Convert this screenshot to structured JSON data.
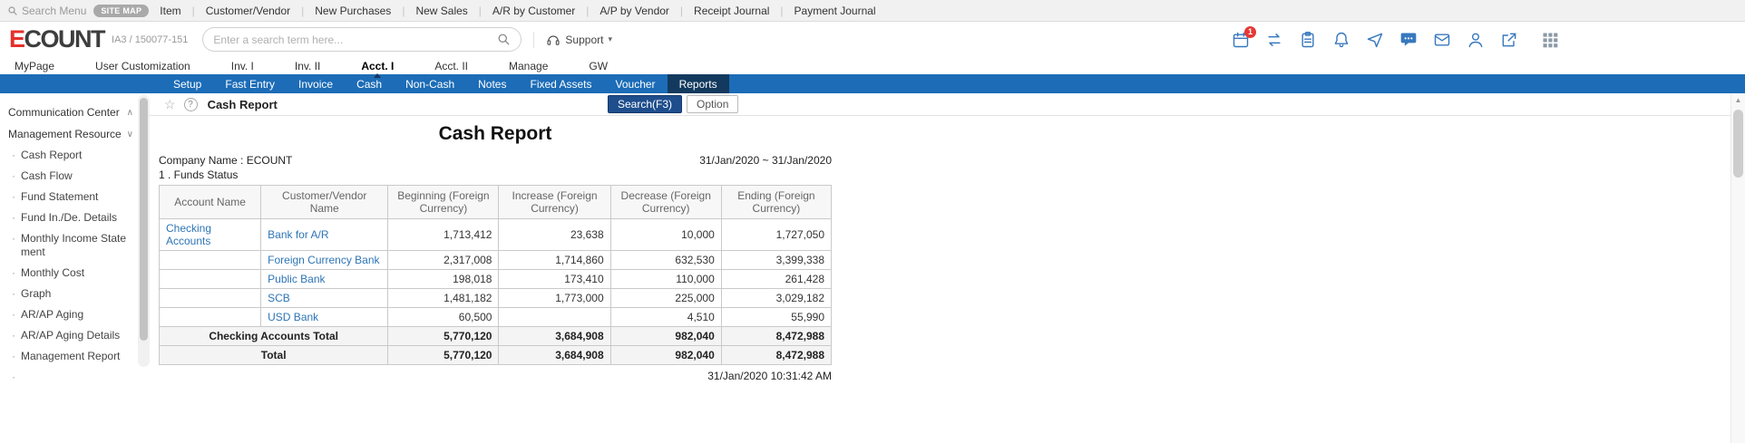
{
  "colors": {
    "blue_bar": "#1c6cb7",
    "blue_bar_active": "#133a5e",
    "link_blue": "#2e75b6",
    "button_blue": "#1f4e8d",
    "logo_red": "#e5312b",
    "icon_blue": "#3778be",
    "badge_red": "#e53935"
  },
  "icons": {
    "star": "☆",
    "help": "?",
    "support_arrow": "▾",
    "chevron_up": "∧",
    "chevron_down": "∨",
    "bullet": "·",
    "scroll_up_arrow": "▲",
    "menu_separator": "|"
  },
  "topbar": {
    "search_menu_label": "Search Menu",
    "site_map_label": "SITE MAP",
    "items": [
      "Item",
      "Customer/Vendor",
      "New Purchases",
      "New Sales",
      "A/R by Customer",
      "A/P by Vendor",
      "Receipt Journal",
      "Payment Journal"
    ]
  },
  "header": {
    "logo_text_red": "E",
    "logo_text_dark": "COUNT",
    "company_code": "IA3 / 150077-151",
    "search_placeholder": "Enter a search term here...",
    "support_label": "Support",
    "notification_badge": "1"
  },
  "main_nav": {
    "tabs": [
      {
        "label": "MyPage",
        "active": false
      },
      {
        "label": "User Customization",
        "active": false
      },
      {
        "label": "Inv. I",
        "active": false
      },
      {
        "label": "Inv. II",
        "active": false
      },
      {
        "label": "Acct. I",
        "active": true
      },
      {
        "label": "Acct. II",
        "active": false
      },
      {
        "label": "Manage",
        "active": false
      },
      {
        "label": "GW",
        "active": false
      }
    ]
  },
  "sub_nav": {
    "items": [
      {
        "label": "Setup",
        "active": false
      },
      {
        "label": "Fast Entry",
        "active": false
      },
      {
        "label": "Invoice",
        "active": false
      },
      {
        "label": "Cash",
        "active": false
      },
      {
        "label": "Non-Cash",
        "active": false
      },
      {
        "label": "Notes",
        "active": false
      },
      {
        "label": "Fixed Assets",
        "active": false
      },
      {
        "label": "Voucher",
        "active": false
      },
      {
        "label": "Reports",
        "active": true
      }
    ]
  },
  "toolbar": {
    "page_title": "Cash Report",
    "search_button_label": "Search(F3)",
    "option_button_label": "Option"
  },
  "sidebar": {
    "sections": [
      {
        "label": "Communication Center",
        "chevron": "up"
      },
      {
        "label": "Management Resource",
        "chevron": "down"
      }
    ],
    "items": [
      "Cash Report",
      "Cash Flow",
      "Fund Statement",
      "Fund In./De. Details",
      "Monthly Income Statement",
      "Monthly Cost",
      "Graph",
      "AR/AP Aging",
      "AR/AP Aging Details",
      "Management Report"
    ]
  },
  "report": {
    "title": "Cash Report",
    "company_label": "Company Name : ECOUNT",
    "date_range": "31/Jan/2020 ~ 31/Jan/2020",
    "section_label": "1 . Funds Status",
    "generated_at": "31/Jan/2020 10:31:42 AM"
  },
  "chart_data": {
    "type": "table",
    "columns": [
      "Account Name",
      "Customer/Vendor Name",
      "Beginning (Foreign Currency)",
      "Increase (Foreign Currency)",
      "Decrease (Foreign Currency)",
      "Ending (Foreign Currency)"
    ],
    "rows": [
      {
        "account": "Checking Accounts",
        "vendor": "Bank for A/R",
        "values": [
          "1,713,412",
          "23,638",
          "10,000",
          "1,727,050"
        ]
      },
      {
        "account": "",
        "vendor": "Foreign Currency Bank",
        "values": [
          "2,317,008",
          "1,714,860",
          "632,530",
          "3,399,338"
        ]
      },
      {
        "account": "",
        "vendor": "Public Bank",
        "values": [
          "198,018",
          "173,410",
          "110,000",
          "261,428"
        ]
      },
      {
        "account": "",
        "vendor": "SCB",
        "values": [
          "1,481,182",
          "1,773,000",
          "225,000",
          "3,029,182"
        ]
      },
      {
        "account": "",
        "vendor": "USD Bank",
        "values": [
          "60,500",
          "",
          "4,510",
          "55,990"
        ]
      }
    ],
    "totals": [
      {
        "label": "Checking Accounts Total",
        "values": [
          "5,770,120",
          "3,684,908",
          "982,040",
          "8,472,988"
        ]
      },
      {
        "label": "Total",
        "values": [
          "5,770,120",
          "3,684,908",
          "982,040",
          "8,472,988"
        ]
      }
    ]
  }
}
